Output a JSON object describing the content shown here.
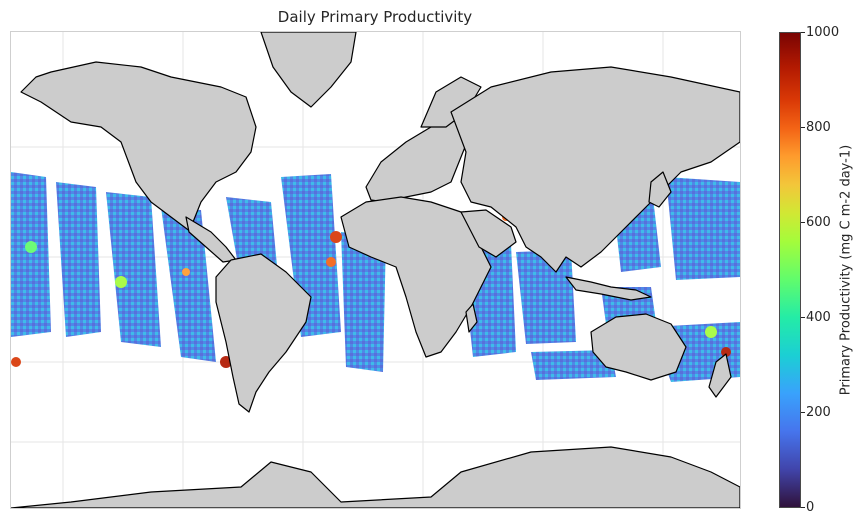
{
  "title": "Daily Primary Productivity",
  "colorbar": {
    "label": "Primary Productivity (mg C m-2 day-1)",
    "ticks": [
      "0",
      "200",
      "400",
      "600",
      "800",
      "1000"
    ],
    "range": [
      0,
      1000
    ],
    "colormap": "turbo"
  },
  "map": {
    "projection": "mercator",
    "land_color": "#cccccc",
    "coastline_color": "#000000",
    "grid": true,
    "swath_value_ranges": {
      "open_ocean": [
        150,
        350
      ],
      "coastal_upwelling": [
        600,
        1000
      ]
    }
  }
}
